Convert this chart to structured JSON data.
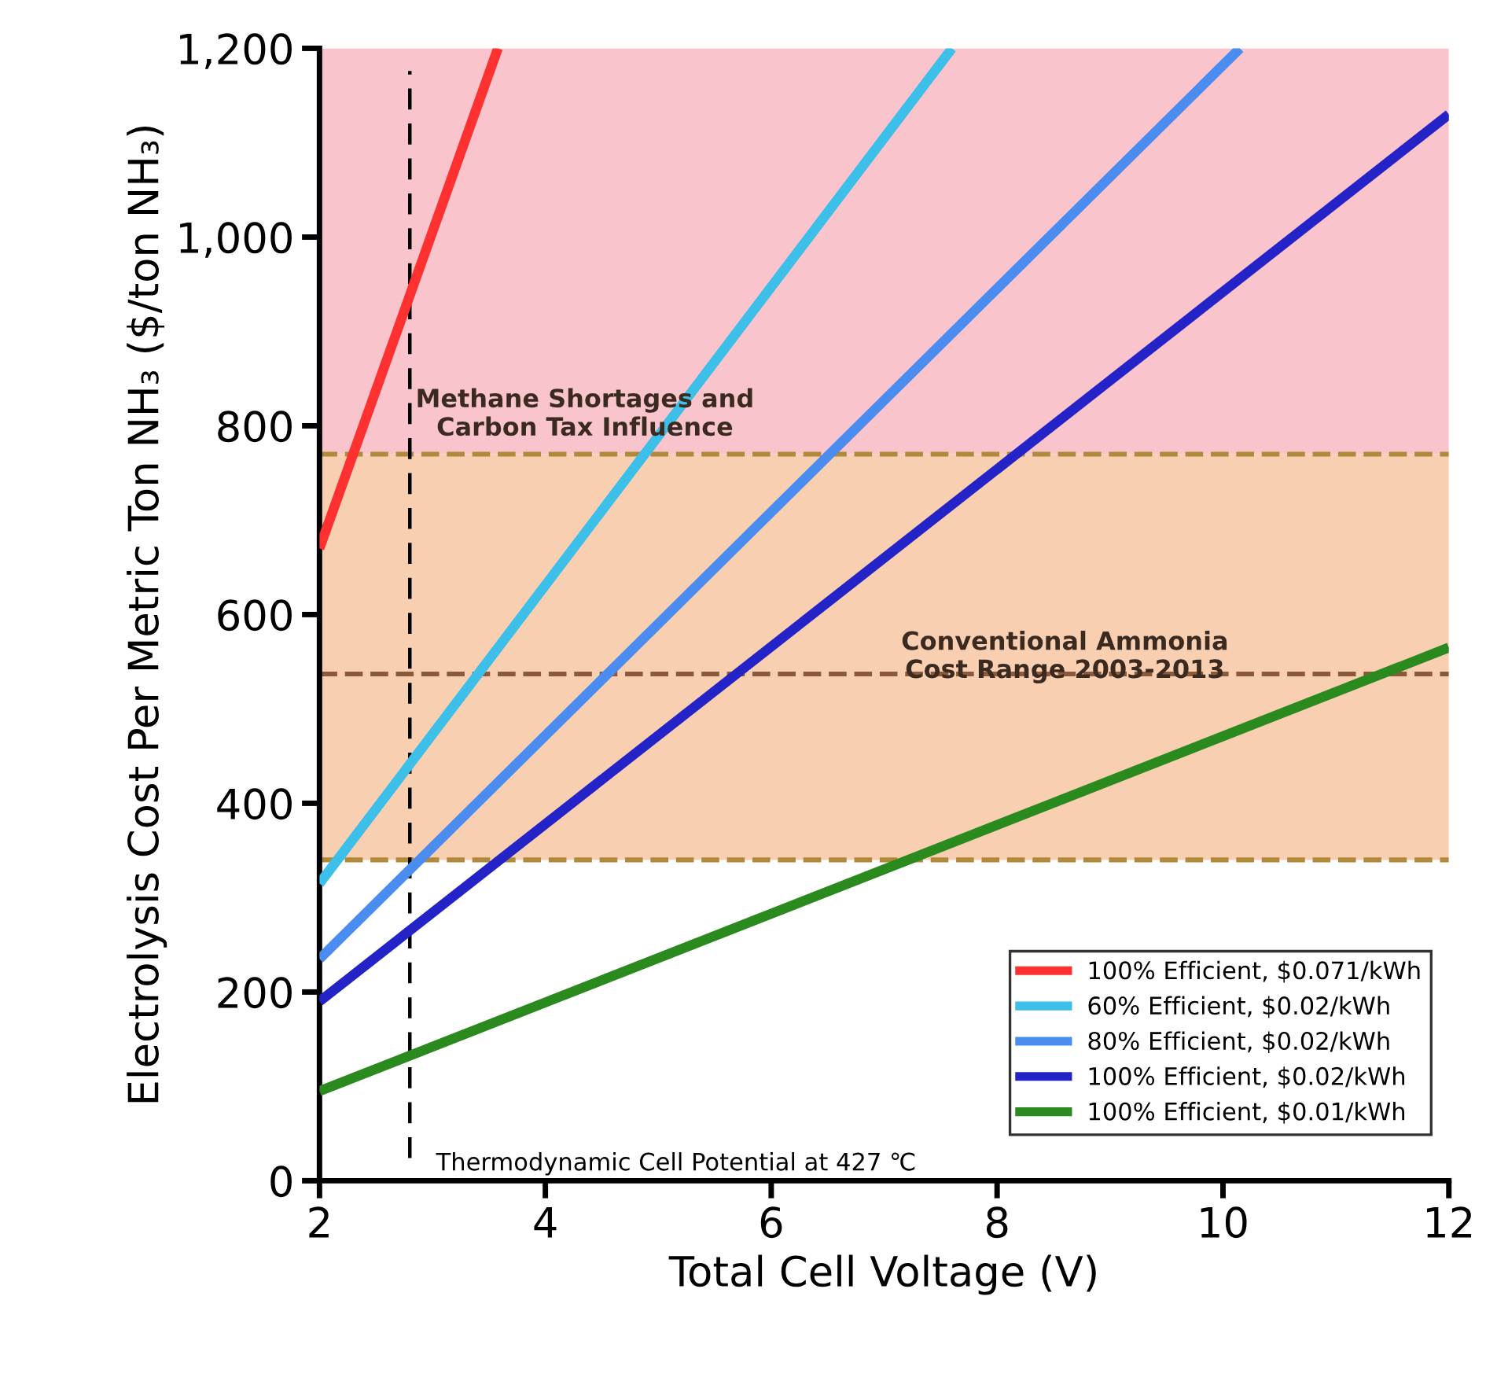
{
  "chart_data": {
    "type": "line",
    "xlabel": "Total Cell Voltage (V)",
    "ylabel": "Electrolysis Cost Per Metric Ton NH₃ ($/ton NH₃)",
    "xlim": [
      2,
      12
    ],
    "xticks": [
      2,
      4,
      6,
      8,
      10,
      12
    ],
    "ylim": [
      0,
      1200
    ],
    "yticks": [
      0,
      200,
      400,
      600,
      800,
      {
        "value": 1000,
        "label": "1,000"
      },
      {
        "value": 1200,
        "label": "1,200"
      }
    ],
    "grid": false,
    "legend": "bottom right",
    "marker": "none",
    "line_style": "solid",
    "series": [
      {
        "name": "100% Efficient, $0.071/kWh",
        "color": "#ff3030",
        "x": [
          2,
          3.58
        ],
        "values": [
          670,
          1200
        ]
      },
      {
        "name": "60% Efficient, $0.02/kWh",
        "color": "#3cbfe8",
        "x": [
          2,
          7.6
        ],
        "values": [
          315,
          1200
        ]
      },
      {
        "name": "80% Efficient, $0.02/kWh",
        "color": "#4a8cf0",
        "x": [
          2,
          10.15
        ],
        "values": [
          235,
          1200
        ]
      },
      {
        "name": "100% Efficient, $0.02/kWh",
        "color": "#2323c8",
        "x": [
          2,
          12
        ],
        "values": [
          190,
          1130
        ]
      },
      {
        "name": "100% Efficient, $0.01/kWh",
        "color": "#2a8a1e",
        "x": [
          2,
          12
        ],
        "values": [
          95,
          565
        ]
      }
    ],
    "bands": [
      {
        "axis": "y",
        "from": 340,
        "to": 770,
        "color": "#f9cfb2",
        "label": "Conventional Ammonia\nCost Range 2003-2013"
      },
      {
        "axis": "y",
        "from": 770,
        "to": 1200,
        "color": "#f9c4cc",
        "label": "Methane Shortages and\nCarbon Tax Influence"
      }
    ],
    "ref_lines": [
      {
        "axis": "y",
        "value": 770,
        "color": "#b08a3a",
        "line_style": "dashed"
      },
      {
        "axis": "y",
        "value": 537,
        "color": "#8b5a3c",
        "line_style": "dashed"
      },
      {
        "axis": "y",
        "value": 340,
        "color": "#b08a3a",
        "line_style": "dashed"
      },
      {
        "axis": "x",
        "value": 2.8,
        "color": "#000000",
        "line_style": "dashed",
        "label": "Thermodynamic Cell Potential at 427 ℃"
      }
    ]
  }
}
